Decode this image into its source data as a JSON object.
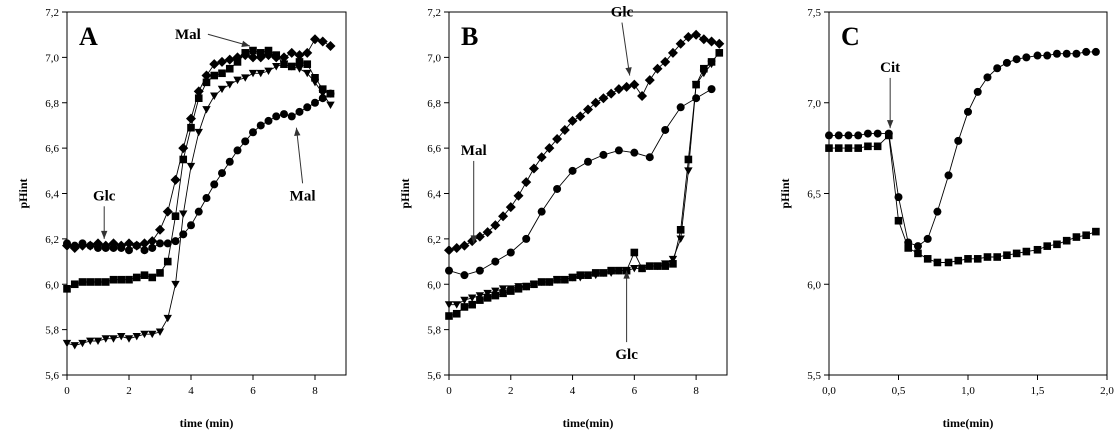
{
  "chart_data": [
    {
      "type": "scatter",
      "title": "A",
      "xlabel": "time (min)",
      "ylabel": "pHint",
      "xlim": [
        0,
        9
      ],
      "ylim": [
        5.6,
        7.2
      ],
      "xticks": [
        0,
        2,
        4,
        6,
        8
      ],
      "yticks": [
        5.6,
        5.8,
        6.0,
        6.2,
        6.4,
        6.6,
        6.8,
        7.0,
        7.2
      ],
      "tick_label_decimal": ",",
      "grid": false,
      "connect_points": true,
      "series": [
        {
          "marker": "diamond",
          "x": [
            0,
            0.25,
            0.5,
            0.75,
            1,
            1.25,
            1.5,
            1.75,
            2,
            2.25,
            2.5,
            2.75,
            3,
            3.25,
            3.5,
            3.75,
            4,
            4.25,
            4.5,
            4.75,
            5,
            5.25,
            5.5,
            5.75,
            6,
            6.25,
            6.5,
            6.75,
            7,
            7.25,
            7.5,
            7.75,
            8,
            8.25,
            8.5
          ],
          "y": [
            6.17,
            6.16,
            6.17,
            6.17,
            6.18,
            6.17,
            6.18,
            6.17,
            6.18,
            6.17,
            6.18,
            6.19,
            6.24,
            6.32,
            6.46,
            6.6,
            6.73,
            6.85,
            6.92,
            6.97,
            6.98,
            6.99,
            7.0,
            7.01,
            7.0,
            7.0,
            7.01,
            7.0,
            7.0,
            7.02,
            7.01,
            7.02,
            7.08,
            7.07,
            7.05
          ]
        },
        {
          "marker": "square",
          "x": [
            0,
            0.25,
            0.5,
            0.75,
            1,
            1.25,
            1.5,
            1.75,
            2,
            2.25,
            2.5,
            2.75,
            3,
            3.25,
            3.5,
            3.75,
            4,
            4.25,
            4.5,
            4.75,
            5,
            5.25,
            5.5,
            5.75,
            6,
            6.25,
            6.5,
            6.75,
            7,
            7.25,
            7.5,
            7.75,
            8,
            8.25,
            8.5
          ],
          "y": [
            5.98,
            6.0,
            6.01,
            6.01,
            6.01,
            6.01,
            6.02,
            6.02,
            6.02,
            6.03,
            6.04,
            6.03,
            6.05,
            6.1,
            6.3,
            6.55,
            6.69,
            6.82,
            6.89,
            6.92,
            6.93,
            6.95,
            6.98,
            7.02,
            7.03,
            7.02,
            7.03,
            7.01,
            6.97,
            6.96,
            6.98,
            6.97,
            6.91,
            6.86,
            6.84
          ]
        },
        {
          "marker": "triangle-down",
          "x": [
            0,
            0.25,
            0.5,
            0.75,
            1,
            1.25,
            1.5,
            1.75,
            2,
            2.25,
            2.5,
            2.75,
            3,
            3.25,
            3.5,
            3.75,
            4,
            4.25,
            4.5,
            4.75,
            5,
            5.25,
            5.5,
            5.75,
            6,
            6.25,
            6.5,
            6.75,
            7,
            7.25,
            7.5,
            7.75,
            8,
            8.25,
            8.5
          ],
          "y": [
            5.74,
            5.73,
            5.74,
            5.75,
            5.75,
            5.76,
            5.76,
            5.77,
            5.76,
            5.77,
            5.78,
            5.78,
            5.79,
            5.85,
            6.0,
            6.31,
            6.52,
            6.67,
            6.77,
            6.83,
            6.86,
            6.88,
            6.9,
            6.91,
            6.93,
            6.93,
            6.94,
            6.96,
            6.97,
            6.96,
            6.95,
            6.93,
            6.89,
            6.84,
            6.79
          ]
        },
        {
          "marker": "circle",
          "x": [
            0,
            0.25,
            0.5,
            0.75,
            1,
            1.25,
            1.5,
            1.75,
            2,
            2.25,
            2.5,
            2.75,
            3,
            3.25,
            3.5,
            3.75,
            4,
            4.25,
            4.5,
            4.75,
            5,
            5.25,
            5.5,
            5.75,
            6,
            6.25,
            6.5,
            6.75,
            7,
            7.25,
            7.5,
            7.75,
            8,
            8.25,
            8.5
          ],
          "y": [
            6.18,
            6.17,
            6.18,
            6.17,
            6.16,
            6.16,
            6.16,
            6.16,
            6.15,
            6.17,
            6.15,
            6.16,
            6.18,
            6.18,
            6.19,
            6.22,
            6.26,
            6.32,
            6.38,
            6.44,
            6.49,
            6.54,
            6.59,
            6.63,
            6.67,
            6.7,
            6.72,
            6.74,
            6.75,
            6.74,
            6.76,
            6.78,
            6.8,
            6.82,
            6.84
          ]
        }
      ],
      "annotations": [
        {
          "text": "Glc",
          "x": 1.2,
          "y": 6.37,
          "arrow_to": [
            1.2,
            6.2
          ]
        },
        {
          "text": "Mal",
          "x": 3.9,
          "y": 7.08,
          "arrow_to": [
            5.9,
            7.05
          ]
        },
        {
          "text": "Mal",
          "x": 7.6,
          "y": 6.37,
          "arrow_to": [
            7.4,
            6.69
          ]
        }
      ]
    },
    {
      "type": "scatter",
      "title": "B",
      "xlabel": "time(min)",
      "ylabel": "pHint",
      "xlim": [
        0,
        9
      ],
      "ylim": [
        5.6,
        7.2
      ],
      "xticks": [
        0,
        2,
        4,
        6,
        8
      ],
      "yticks": [
        5.6,
        5.8,
        6.0,
        6.2,
        6.4,
        6.6,
        6.8,
        7.0,
        7.2
      ],
      "tick_label_decimal": ",",
      "grid": false,
      "connect_points": true,
      "series": [
        {
          "marker": "diamond",
          "x": [
            0,
            0.25,
            0.5,
            0.75,
            1,
            1.25,
            1.5,
            1.75,
            2,
            2.25,
            2.5,
            2.75,
            3,
            3.25,
            3.5,
            3.75,
            4,
            4.25,
            4.5,
            4.75,
            5,
            5.25,
            5.5,
            5.75,
            6,
            6.25,
            6.5,
            6.75,
            7,
            7.25,
            7.5,
            7.75,
            8,
            8.25,
            8.5,
            8.75
          ],
          "y": [
            6.15,
            6.16,
            6.17,
            6.19,
            6.21,
            6.23,
            6.26,
            6.3,
            6.34,
            6.39,
            6.45,
            6.51,
            6.56,
            6.6,
            6.64,
            6.68,
            6.72,
            6.74,
            6.77,
            6.8,
            6.82,
            6.84,
            6.86,
            6.87,
            6.88,
            6.83,
            6.9,
            6.95,
            6.98,
            7.02,
            7.06,
            7.09,
            7.1,
            7.08,
            7.07,
            7.06
          ]
        },
        {
          "marker": "circle",
          "x": [
            0,
            0.5,
            1,
            1.5,
            2,
            2.5,
            3,
            3.5,
            4,
            4.5,
            5,
            5.5,
            6,
            6.5,
            7,
            7.5,
            8,
            8.5
          ],
          "y": [
            6.06,
            6.04,
            6.06,
            6.1,
            6.14,
            6.2,
            6.32,
            6.42,
            6.5,
            6.54,
            6.57,
            6.59,
            6.58,
            6.56,
            6.68,
            6.78,
            6.82,
            6.86
          ]
        },
        {
          "marker": "square",
          "x": [
            0,
            0.25,
            0.5,
            0.75,
            1,
            1.25,
            1.5,
            1.75,
            2,
            2.25,
            2.5,
            2.75,
            3,
            3.25,
            3.5,
            3.75,
            4,
            4.25,
            4.5,
            4.75,
            5,
            5.25,
            5.5,
            5.75,
            6,
            6.25,
            6.5,
            6.75,
            7,
            7.25,
            7.5,
            7.75,
            8,
            8.25,
            8.5,
            8.75
          ],
          "y": [
            5.86,
            5.87,
            5.9,
            5.91,
            5.93,
            5.94,
            5.95,
            5.96,
            5.97,
            5.98,
            5.99,
            6.0,
            6.01,
            6.01,
            6.02,
            6.02,
            6.03,
            6.04,
            6.04,
            6.05,
            6.05,
            6.06,
            6.06,
            6.06,
            6.14,
            6.07,
            6.08,
            6.08,
            6.08,
            6.09,
            6.24,
            6.55,
            6.88,
            6.95,
            6.98,
            7.02
          ]
        },
        {
          "marker": "triangle-down",
          "x": [
            0,
            0.25,
            0.5,
            0.75,
            1,
            1.25,
            1.5,
            1.75,
            2,
            2.25,
            2.5,
            2.75,
            3,
            3.25,
            3.5,
            3.75,
            4,
            4.25,
            4.5,
            4.75,
            5,
            5.25,
            5.5,
            5.75,
            6,
            6.25,
            6.5,
            6.75,
            7,
            7.25,
            7.5,
            7.75,
            8,
            8.25,
            8.5
          ],
          "y": [
            5.91,
            5.91,
            5.93,
            5.94,
            5.95,
            5.96,
            5.97,
            5.98,
            5.98,
            5.99,
            5.99,
            6.0,
            6.01,
            6.01,
            6.02,
            6.02,
            6.03,
            6.03,
            6.04,
            6.04,
            6.05,
            6.05,
            6.06,
            6.06,
            6.07,
            6.07,
            6.08,
            6.08,
            6.09,
            6.11,
            6.2,
            6.5,
            6.88,
            6.93,
            6.97
          ]
        }
      ],
      "annotations": [
        {
          "text": "Glc",
          "x": 5.6,
          "y": 7.18,
          "arrow_to": [
            5.85,
            6.92
          ]
        },
        {
          "text": "Mal",
          "x": 0.8,
          "y": 6.57,
          "arrow_to": [
            0.8,
            6.18
          ]
        },
        {
          "text": "Glc",
          "x": 5.75,
          "y": 5.67,
          "arrow_to": [
            5.75,
            6.06
          ]
        }
      ]
    },
    {
      "type": "scatter",
      "title": "C",
      "xlabel": "time(min)",
      "ylabel": "pHint",
      "xlim": [
        0,
        2.0
      ],
      "ylim": [
        5.5,
        7.5
      ],
      "xticks": [
        0,
        0.5,
        1.0,
        1.5,
        2.0
      ],
      "xtick_labels": [
        "0,0",
        "0,5",
        "1,0",
        "1,5",
        "2,0"
      ],
      "yticks": [
        5.5,
        6.0,
        6.5,
        7.0,
        7.5
      ],
      "tick_label_decimal": ",",
      "grid": false,
      "connect_points": true,
      "series": [
        {
          "marker": "circle",
          "x": [
            0,
            0.07,
            0.14,
            0.21,
            0.28,
            0.35,
            0.43,
            0.5,
            0.57,
            0.64,
            0.71,
            0.78,
            0.86,
            0.93,
            1.0,
            1.07,
            1.14,
            1.21,
            1.28,
            1.35,
            1.42,
            1.5,
            1.57,
            1.64,
            1.71,
            1.78,
            1.85,
            1.92
          ],
          "y": [
            6.82,
            6.82,
            6.82,
            6.82,
            6.83,
            6.83,
            6.83,
            6.48,
            6.23,
            6.21,
            6.25,
            6.4,
            6.6,
            6.79,
            6.95,
            7.06,
            7.14,
            7.19,
            7.22,
            7.24,
            7.25,
            7.26,
            7.26,
            7.27,
            7.27,
            7.27,
            7.28,
            7.28
          ]
        },
        {
          "marker": "square",
          "x": [
            0,
            0.07,
            0.14,
            0.21,
            0.28,
            0.35,
            0.43,
            0.5,
            0.57,
            0.64,
            0.71,
            0.78,
            0.86,
            0.93,
            1.0,
            1.07,
            1.14,
            1.21,
            1.28,
            1.35,
            1.42,
            1.5,
            1.57,
            1.64,
            1.71,
            1.78,
            1.85,
            1.92
          ],
          "y": [
            6.75,
            6.75,
            6.75,
            6.75,
            6.76,
            6.76,
            6.82,
            6.35,
            6.2,
            6.17,
            6.14,
            6.12,
            6.12,
            6.13,
            6.14,
            6.14,
            6.15,
            6.15,
            6.16,
            6.17,
            6.18,
            6.19,
            6.21,
            6.22,
            6.24,
            6.26,
            6.27,
            6.29
          ]
        }
      ],
      "annotations": [
        {
          "text": "Cit",
          "x": 0.44,
          "y": 7.17,
          "arrow_to": [
            0.44,
            6.86
          ]
        }
      ]
    }
  ]
}
